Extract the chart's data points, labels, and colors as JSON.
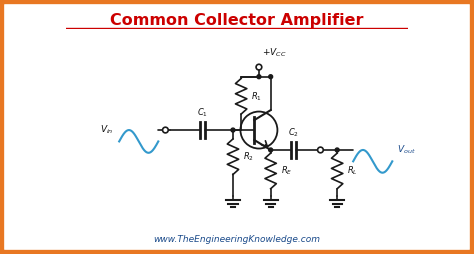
{
  "title": "Common Collector Amplifier",
  "title_color": "#cc0000",
  "background_color": "#ffffff",
  "border_color": "#e87722",
  "line_color": "#1a1a1a",
  "sine_color": "#3399cc",
  "label_color": "#111111",
  "vout_color": "#1a4a8a",
  "website": "www.TheEngineeringKnowledge.com",
  "website_color": "#1a4a8a",
  "fig_width": 4.74,
  "fig_height": 2.54,
  "dpi": 100
}
